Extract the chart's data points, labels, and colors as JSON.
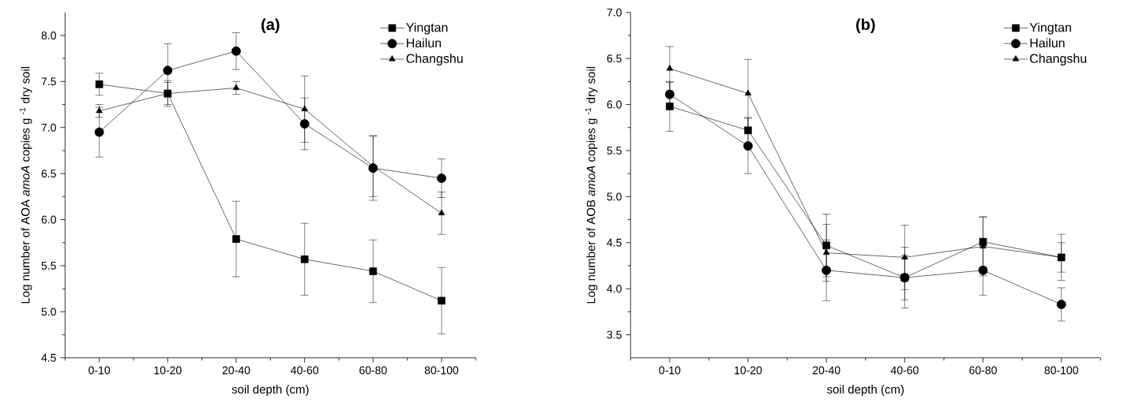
{
  "chart_data": [
    {
      "type": "line",
      "title": "(a)",
      "xlabel": "soil depth (cm)",
      "ylabel": "Log number of AOA *amoA* copies g $^{-1}$ dry soil",
      "categories": [
        "0-10",
        "10-20",
        "20-40",
        "40-60",
        "60-80",
        "80-100"
      ],
      "ylim": [
        4.5,
        8.25
      ],
      "yticks": [
        4.5,
        {
          "value": 5.0,
          "label": "5.0"
        },
        5.5,
        {
          "value": 6.0,
          "label": "6.0"
        },
        6.5,
        {
          "value": 7.0,
          "label": "7.0"
        },
        7.5,
        {
          "value": 8.0,
          "label": "8.0"
        }
      ],
      "legend": "top right",
      "grid": false,
      "series": [
        {
          "name": "Yingtan",
          "color": "#000000",
          "marker": "square",
          "values": [
            7.47,
            7.37,
            5.79,
            5.57,
            5.44,
            5.12
          ],
          "errors": [
            0.12,
            0.14,
            0.41,
            0.39,
            0.34,
            0.36
          ]
        },
        {
          "name": "Hailun",
          "color": "#000000",
          "marker": "circle",
          "values": [
            6.95,
            7.62,
            7.83,
            7.04,
            6.56,
            6.45
          ],
          "errors": [
            0.27,
            0.29,
            0.2,
            0.28,
            0.35,
            0.21
          ]
        },
        {
          "name": "Changshu",
          "color": "#000000",
          "marker": "triangle",
          "values": [
            7.18,
            7.37,
            7.43,
            7.2,
            6.58,
            6.07
          ],
          "errors": [
            0.07,
            0.12,
            0.07,
            0.36,
            0.33,
            0.23
          ]
        }
      ]
    },
    {
      "type": "line",
      "title": "(b)",
      "xlabel": "soil depth (cm)",
      "ylabel": "Log number of AOB *amoA* copies g $^{-1}$ dry soil",
      "categories": [
        "0-10",
        "10-20",
        "20-40",
        "40-60",
        "60-80",
        "80-100"
      ],
      "ylim": [
        3.25,
        7.0
      ],
      "yticks": [
        3.5,
        {
          "value": 4.0,
          "label": "4.0"
        },
        4.5,
        {
          "value": 5.0,
          "label": "5.0"
        },
        5.5,
        {
          "value": 6.0,
          "label": "6.0"
        },
        6.5,
        {
          "value": 7.0,
          "label": "7.0"
        }
      ],
      "legend": "top right",
      "grid": false,
      "series": [
        {
          "name": "Yingtan",
          "color": "#000000",
          "marker": "square",
          "values": [
            5.98,
            5.72,
            4.47,
            4.12,
            4.51,
            4.34
          ],
          "errors": [
            0.27,
            0.14,
            0.34,
            0.33,
            0.27,
            0.25
          ]
        },
        {
          "name": "Hailun",
          "color": "#000000",
          "marker": "circle",
          "values": [
            6.11,
            5.55,
            4.2,
            4.12,
            4.2,
            3.83
          ],
          "errors": [
            0.13,
            0.3,
            0.33,
            0.24,
            0.27,
            0.18
          ]
        },
        {
          "name": "Changshu",
          "color": "#000000",
          "marker": "triangle",
          "values": [
            6.39,
            6.12,
            4.39,
            4.34,
            4.46,
            4.34
          ],
          "errors": [
            0.24,
            0.37,
            0.31,
            0.35,
            0.32,
            0.16
          ]
        }
      ]
    }
  ]
}
